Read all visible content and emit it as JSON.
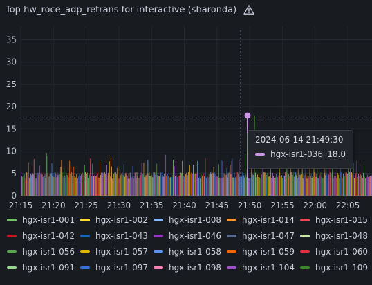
{
  "panel": {
    "title": "Top hw_roce_adp_retrans for interactive (sharonda)",
    "warning_icon": "warning-triangle-icon"
  },
  "chart_data": {
    "type": "bar",
    "ylim": [
      0,
      38
    ],
    "y_ticks": [
      0,
      5,
      10,
      15,
      20,
      25,
      30,
      35
    ],
    "x_ticks": [
      "21:15",
      "21:20",
      "21:25",
      "21:30",
      "21:35",
      "21:40",
      "21:45",
      "21:50",
      "21:55",
      "22:00",
      "22:05"
    ],
    "threshold": 17,
    "hover_time": "21:49:30",
    "palette": [
      "#73bf69",
      "#fade2a",
      "#5794f2",
      "#ff9830",
      "#f2495c",
      "#b877d9",
      "#8ab8ff",
      "#56a64b",
      "#e0b400",
      "#c4162a",
      "#1f60c4",
      "#8f3bb8",
      "#ca95e5",
      "#96d98d",
      "#ff7383",
      "#fa6400",
      "#a352cc",
      "#37872d",
      "#ffb357",
      "#3274d9"
    ],
    "bar_intervals": 64,
    "bars_per_interval": 8,
    "base_value": 4.6,
    "tall_values": [
      {
        "at": 11,
        "value": 7.5
      },
      {
        "at": 19,
        "value": 8.2
      },
      {
        "at": 27,
        "value": 6.8
      },
      {
        "at": 37,
        "value": 9.6
      },
      {
        "at": 38,
        "value": 8.9
      },
      {
        "at": 45,
        "value": 7.3
      },
      {
        "at": 58,
        "value": 6.5
      },
      {
        "at": 71,
        "value": 7.8
      },
      {
        "at": 82,
        "value": 6.2
      },
      {
        "at": 93,
        "value": 6.9
      },
      {
        "at": 104,
        "value": 7.2
      },
      {
        "at": 115,
        "value": 7.6
      },
      {
        "at": 128,
        "value": 8.7
      },
      {
        "at": 141,
        "value": 6.3
      },
      {
        "at": 150,
        "value": 7.1
      },
      {
        "at": 163,
        "value": 6.7
      },
      {
        "at": 176,
        "value": 7.4
      },
      {
        "at": 185,
        "value": 8.0
      },
      {
        "at": 198,
        "value": 7.2
      },
      {
        "at": 211,
        "value": 9.2
      },
      {
        "at": 224,
        "value": 6.6
      },
      {
        "at": 235,
        "value": 7.8
      },
      {
        "at": 246,
        "value": 6.9
      },
      {
        "at": 258,
        "value": 7.5
      },
      {
        "at": 269,
        "value": 8.4
      },
      {
        "at": 281,
        "value": 6.5
      },
      {
        "at": 292,
        "value": 7.9
      },
      {
        "at": 305,
        "value": 7.0
      },
      {
        "at": 318,
        "value": 8.1
      },
      {
        "at": 327,
        "value": 9.4
      },
      {
        "at": 336,
        "value": 10.8
      },
      {
        "at": 341,
        "value": 18.0
      },
      {
        "at": 344,
        "value": 13.5
      },
      {
        "at": 352,
        "value": 9.1
      },
      {
        "at": 364,
        "value": 7.4
      },
      {
        "at": 377,
        "value": 6.8
      },
      {
        "at": 388,
        "value": 8.2
      },
      {
        "at": 399,
        "value": 7.0
      },
      {
        "at": 410,
        "value": 6.9
      },
      {
        "at": 421,
        "value": 7.6
      },
      {
        "at": 432,
        "value": 8.0
      },
      {
        "at": 443,
        "value": 6.7
      },
      {
        "at": 454,
        "value": 7.3
      },
      {
        "at": 466,
        "value": 8.6
      },
      {
        "at": 478,
        "value": 6.5
      },
      {
        "at": 489,
        "value": 7.8
      },
      {
        "at": 500,
        "value": 7.1
      }
    ],
    "highlight": {
      "series": "hgx-isr1-036",
      "value": 18.0,
      "color": "#ca95e5"
    },
    "series": [
      {
        "name": "hgx-isr1-001",
        "color": "#73bf69"
      },
      {
        "name": "hgx-isr1-002",
        "color": "#fade2a"
      },
      {
        "name": "hgx-isr1-008",
        "color": "#8ab8ff"
      },
      {
        "name": "hgx-isr1-014",
        "color": "#ff9830"
      },
      {
        "name": "hgx-isr1-015",
        "color": "#f2495c"
      },
      {
        "name": "hgx-isr1-042",
        "color": "#c4162a"
      },
      {
        "name": "hgx-isr1-043",
        "color": "#1f60c4"
      },
      {
        "name": "hgx-isr1-046",
        "color": "#8f3bb8"
      },
      {
        "name": "hgx-isr1-047",
        "color": "#5a6a8a"
      },
      {
        "name": "hgx-isr1-048",
        "color": "#c8e6a0"
      },
      {
        "name": "hgx-isr1-056",
        "color": "#56a64b"
      },
      {
        "name": "hgx-isr1-057",
        "color": "#e0b400"
      },
      {
        "name": "hgx-isr1-058",
        "color": "#5794f2"
      },
      {
        "name": "hgx-isr1-059",
        "color": "#fa6400"
      },
      {
        "name": "hgx-isr1-060",
        "color": "#e02f44"
      },
      {
        "name": "hgx-isr1-091",
        "color": "#96d98d"
      },
      {
        "name": "hgx-isr1-097",
        "color": "#3274d9"
      },
      {
        "name": "hgx-isr1-098",
        "color": "#ff7eb6"
      },
      {
        "name": "hgx-isr1-104",
        "color": "#a352cc"
      },
      {
        "name": "hgx-isr1-109",
        "color": "#37872d"
      }
    ]
  },
  "tooltip": {
    "time": "2024-06-14 21:49:30",
    "series": "hgx-isr1-036",
    "value": "18.0"
  }
}
